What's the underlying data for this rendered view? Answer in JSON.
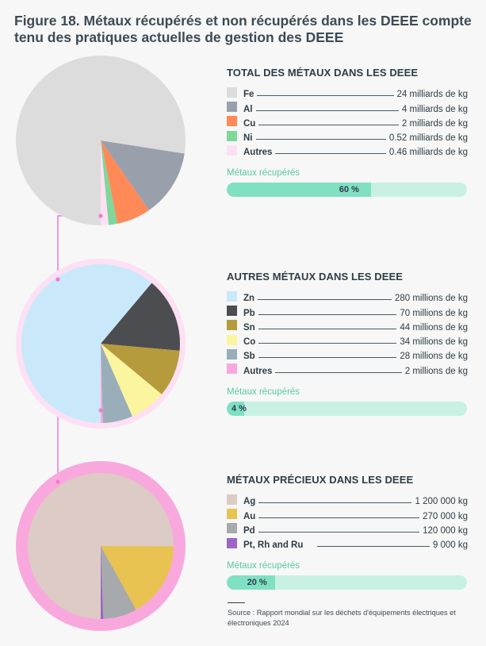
{
  "figure_title": "Figure 18. Métaux récupérés et non récupérés dans les DEEE compte tenu des pratiques actuelles de gestion des DEEE",
  "recovered_label": "Métaux récupérés",
  "source": "Source : Rapport mondial sur les déchets d'équipements électriques et électroniques 2024",
  "panels": [
    {
      "title": "TOTAL DES MÉTAUX DANS LES DEEE",
      "items": [
        {
          "name": "Fe",
          "value": "24 milliards de kg",
          "color": "#dddcdc"
        },
        {
          "name": "Al",
          "value": "4 milliards de kg",
          "color": "#9aa0ab"
        },
        {
          "name": "Cu",
          "value": "2 milliards de kg",
          "color": "#ff8a58"
        },
        {
          "name": "Ni",
          "value": "0.52 milliards de kg",
          "color": "#7fd79a"
        },
        {
          "name": "Autres",
          "value": "0.46 milliards de kg",
          "color": "#fde0f3"
        }
      ],
      "recovered_text": "60 %"
    },
    {
      "title": "AUTRES MÉTAUX DANS LES DEEE",
      "items": [
        {
          "name": "Zn",
          "value": "280 millions de kg",
          "color": "#c9e9fb"
        },
        {
          "name": "Pb",
          "value": "70 millions de kg",
          "color": "#4c4d50"
        },
        {
          "name": "Sn",
          "value": "44 millions de kg",
          "color": "#b59b3c"
        },
        {
          "name": "Co",
          "value": "34 millions de kg",
          "color": "#fbf5a0"
        },
        {
          "name": "Sb",
          "value": "28 millions de kg",
          "color": "#9aaeb9"
        },
        {
          "name": "Autres",
          "value": "2 millions de kg",
          "color": "#f9a8de"
        }
      ],
      "recovered_text": "4 %"
    },
    {
      "title": "MÉTAUX PRÉCIEUX DANS LES DEEE",
      "items": [
        {
          "name": "Ag",
          "value": "1 200 000 kg",
          "color": "#ddcbc5"
        },
        {
          "name": "Au",
          "value": "270 000 kg",
          "color": "#e9c352"
        },
        {
          "name": "Pd",
          "value": "120 000 kg",
          "color": "#a6aaad"
        },
        {
          "name": "Pt, Rh and Ru",
          "value": "9 000 kg",
          "color": "#9e65c9"
        }
      ],
      "recovered_text": "20 %"
    }
  ],
  "chart_data": [
    {
      "type": "pie",
      "title": "TOTAL DES MÉTAUX DANS LES DEEE",
      "unit": "milliards de kg",
      "categories": [
        "Fe",
        "Al",
        "Cu",
        "Ni",
        "Autres"
      ],
      "values": [
        24,
        4,
        2,
        0.52,
        0.46
      ],
      "colors": [
        "#dddcdc",
        "#9aa0ab",
        "#ff8a58",
        "#7fd79a",
        "#fde0f3"
      ],
      "recovered_fraction": 0.6
    },
    {
      "type": "pie",
      "title": "AUTRES MÉTAUX DANS LES DEEE",
      "unit": "millions de kg",
      "categories": [
        "Zn",
        "Pb",
        "Sn",
        "Co",
        "Sb",
        "Autres"
      ],
      "values": [
        280,
        70,
        44,
        34,
        28,
        2
      ],
      "colors": [
        "#c9e9fb",
        "#4c4d50",
        "#b59b3c",
        "#fbf5a0",
        "#9aaeb9",
        "#f9a8de"
      ],
      "recovered_fraction": 0.04,
      "ring_color": "#fde0f3"
    },
    {
      "type": "pie",
      "title": "MÉTAUX PRÉCIEUX DANS LES DEEE",
      "unit": "kg",
      "categories": [
        "Ag",
        "Au",
        "Pd",
        "Pt, Rh and Ru"
      ],
      "values": [
        1200000,
        270000,
        120000,
        9000
      ],
      "colors": [
        "#ddcbc5",
        "#e9c352",
        "#a6aaad",
        "#9e65c9"
      ],
      "recovered_fraction": 0.2,
      "ring_color": "#f9a8de"
    }
  ]
}
